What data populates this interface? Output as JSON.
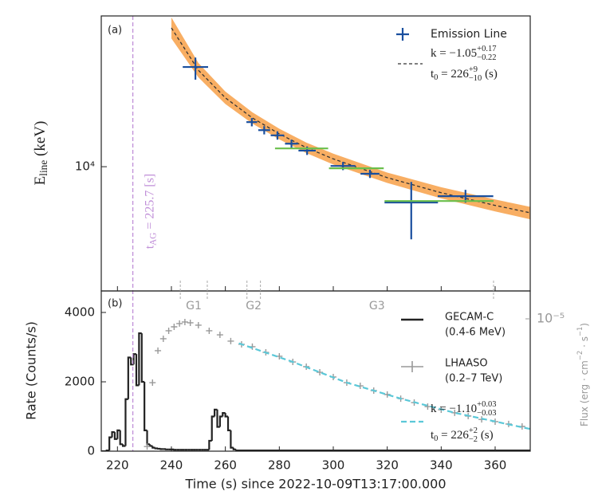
{
  "chart_data": [
    {
      "type": "errorbar",
      "panel_label": "(a)",
      "ylabel": [
        {
          "t": "E"
        },
        {
          "sub": "line"
        },
        {
          "t": " (keV)"
        }
      ],
      "xlim": [
        214,
        373
      ],
      "ylim": [
        1900,
        75000
      ],
      "ylog": true,
      "yticks": [
        {
          "value": 10000,
          "label": "10⁴"
        }
      ],
      "series": [
        {
          "name": "Emission Line",
          "color": "#1a4f9e",
          "x": [
            248.9,
            269.8,
            274.4,
            279.3,
            284.5,
            290.3,
            303.6,
            313.6,
            328.9,
            349.0
          ],
          "xerr": [
            4.7,
            2.0,
            2.2,
            2.5,
            2.4,
            3.2,
            4.6,
            3.5,
            9.9,
            10.3
          ],
          "values": [
            37900,
            18150,
            16300,
            15200,
            13600,
            12400,
            10100,
            9100,
            6200,
            6740
          ],
          "yerr_lo": [
            5900,
            1000,
            900,
            850,
            750,
            700,
            550,
            500,
            2410,
            550
          ],
          "yerr_hi": [
            5100,
            1000,
            900,
            850,
            750,
            700,
            550,
            500,
            1960,
            600
          ]
        },
        {
          "color": "#6abf4b",
          "x": [
            288.25,
            308.55,
            339.2
          ],
          "xerr": [
            9.85,
            10.15,
            20.2
          ],
          "values": [
            12770,
            9790,
            6320
          ]
        }
      ],
      "fit": {
        "legend": [
          [
            {
              "t": "k = −1.05"
            },
            {
              "sup": "+0.17",
              "sub": "−0.22"
            }
          ],
          [
            {
              "t": "t"
            },
            {
              "sub": "0"
            },
            {
              "t": " = 226"
            },
            {
              "sup": "+9",
              "sub": "−10"
            },
            {
              "t": " (s)"
            }
          ]
        ],
        "color": "#333333",
        "band_color": "#f7a048",
        "x": [
          240,
          250,
          260,
          270,
          280,
          290,
          300,
          320,
          340,
          360,
          373
        ],
        "values": [
          63900,
          36300,
          25100,
          19200,
          15500,
          12900,
          11100,
          8640,
          7060,
          5960,
          5400
        ],
        "band_lower": [
          55500,
          33000,
          23100,
          17800,
          14400,
          12000,
          10300,
          8050,
          6550,
          5500,
          4950
        ],
        "band_upper": [
          73500,
          40000,
          27300,
          20700,
          16600,
          13800,
          11900,
          9250,
          7600,
          6450,
          5850
        ]
      },
      "vline": {
        "value": 225.7,
        "color": "#c08fd8",
        "label": [
          {
            "t": "t"
          },
          {
            "sub": "AG"
          },
          {
            "t": " = 225.7 [s]"
          }
        ]
      }
    },
    {
      "type": "combo",
      "panel_label": "(b)",
      "ylabel": "Rate (Counts/s)",
      "y2label": [
        {
          "t": "Flux (erg · cm"
        },
        {
          "sup": "−2"
        },
        {
          "t": " · s"
        },
        {
          "sup": "−1"
        },
        {
          "t": ")"
        }
      ],
      "xlabel": "Time (s) since 2022-10-09T13:17:00.000",
      "xlim": [
        214,
        373
      ],
      "xticks": [
        220,
        240,
        260,
        280,
        300,
        320,
        340,
        360
      ],
      "ylim": [
        0,
        4620
      ],
      "yticks": [
        0,
        2000,
        4000
      ],
      "y2lim": [
        1.14e-06,
        1.58e-05
      ],
      "y2log": true,
      "y2ticks": [
        {
          "value": 1e-05,
          "label": "10⁻⁵"
        }
      ],
      "series": [
        {
          "name": "GECAM-C",
          "band": "(0.4-6 MeV)",
          "kind": "step",
          "color": "#222222",
          "bins": [
            214,
            215,
            216,
            217,
            218,
            219,
            220,
            221,
            222,
            223,
            224,
            225,
            226,
            227,
            228,
            229,
            230,
            231,
            232,
            233,
            234,
            235,
            236,
            237,
            238,
            239,
            240,
            241,
            242,
            243,
            244,
            245,
            246,
            247,
            248,
            249,
            250,
            251,
            252,
            253,
            254,
            255,
            256,
            257,
            258,
            259,
            260,
            261,
            262,
            263,
            264,
            373
          ],
          "values": [
            0,
            0,
            20,
            400,
            550,
            350,
            600,
            200,
            150,
            1500,
            2700,
            2500,
            2800,
            1900,
            3400,
            2000,
            600,
            200,
            150,
            100,
            80,
            70,
            60,
            60,
            50,
            50,
            50,
            40,
            40,
            40,
            40,
            40,
            40,
            40,
            40,
            40,
            40,
            40,
            40,
            40,
            300,
            1000,
            1200,
            700,
            1000,
            1100,
            1000,
            600,
            100,
            50,
            20
          ]
        },
        {
          "name": "LHAASO",
          "band": "(0.2–7 TeV)",
          "kind": "points",
          "axis": "y2",
          "color": "#999999",
          "x": [
            231,
            233,
            235,
            237,
            239,
            241,
            243,
            245,
            247,
            250,
            254,
            258,
            262,
            266,
            270,
            275,
            280,
            285,
            290,
            295,
            300,
            305,
            310,
            315,
            320,
            325,
            330,
            335,
            340,
            345,
            350,
            355,
            360,
            365,
            370
          ],
          "values": [
            1.23e-06,
            3.51e-06,
            5.93e-06,
            7.21e-06,
            8.22e-06,
            8.77e-06,
            9.25e-06,
            9.49e-06,
            9.37e-06,
            9.01e-06,
            8.22e-06,
            7.69e-06,
            6.94e-06,
            6.58e-06,
            6.33e-06,
            5.77e-06,
            5.41e-06,
            4.93e-06,
            4.56e-06,
            4.16e-06,
            3.85e-06,
            3.51e-06,
            3.33e-06,
            3.08e-06,
            2.89e-06,
            2.7e-06,
            2.53e-06,
            2.37e-06,
            2.25e-06,
            2.14e-06,
            2.03e-06,
            1.92e-06,
            1.85e-06,
            1.78e-06,
            1.71e-06
          ]
        },
        {
          "legend": [
            [
              {
                "t": "k = −1.10"
              },
              {
                "sup": "+0.03",
                "sub": "−0.03"
              }
            ],
            [
              {
                "t": "t"
              },
              {
                "sub": "0"
              },
              {
                "t": " = 226"
              },
              {
                "sup": "+2",
                "sub": "−2"
              },
              {
                "t": " (s)"
              }
            ]
          ],
          "kind": "line",
          "axis": "y2",
          "color": "#5bc8d8",
          "x": [
            265,
            285,
            305,
            325,
            345,
            373
          ],
          "values": [
            6.69e-06,
            4.93e-06,
            3.51e-06,
            2.7e-06,
            2.14e-06,
            1.64e-06
          ]
        }
      ],
      "groups": {
        "labels": [
          "G1",
          "G2",
          "G3"
        ],
        "edges": [
          243.3,
          253.3,
          268,
          273,
          359.4
        ]
      }
    }
  ]
}
